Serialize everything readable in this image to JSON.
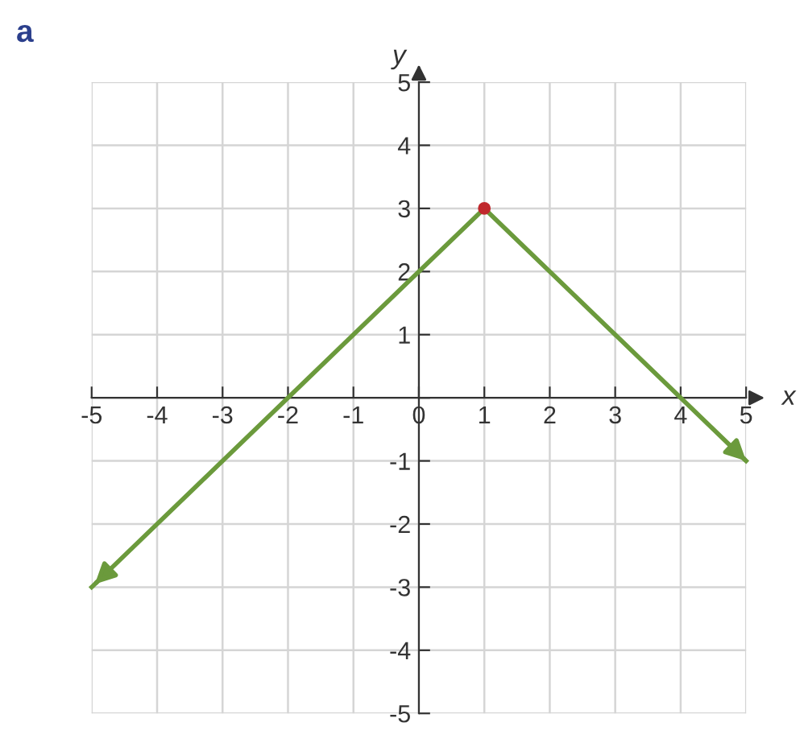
{
  "chart_data": {
    "type": "line",
    "title": "a",
    "xlabel": "x",
    "ylabel": "y",
    "xlim": [
      -5,
      5
    ],
    "ylim": [
      -5,
      5
    ],
    "xticks": [
      -5,
      -4,
      -3,
      -2,
      -1,
      {
        "value": 0,
        "label": "0"
      },
      1,
      2,
      3,
      4,
      5
    ],
    "yticks": [
      -5,
      -4,
      -3,
      -2,
      -1,
      {
        "value": 0,
        "label": null
      },
      1,
      2,
      3,
      4,
      5
    ],
    "grid": true,
    "series": [
      {
        "color": "#6b9a3c",
        "x": [
          -5,
          1,
          5
        ],
        "values": [
          -3,
          3,
          -1
        ],
        "marker": "none"
      },
      {
        "type": "scatter",
        "color": "#c0282d",
        "x": [
          1
        ],
        "values": [
          3
        ],
        "marker": "circle"
      }
    ]
  }
}
